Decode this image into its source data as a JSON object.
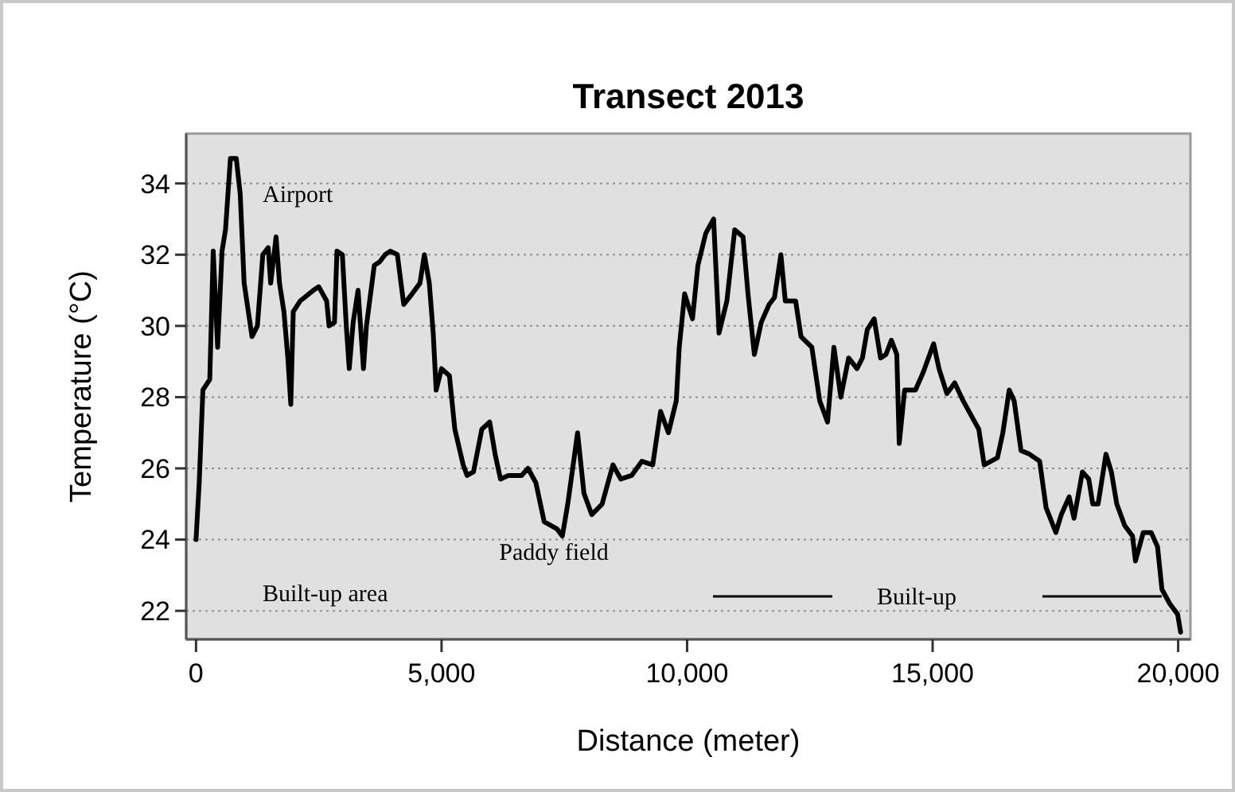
{
  "chart_data": {
    "type": "line",
    "title": "Transect 2013",
    "xlabel": "Distance (meter)",
    "ylabel": "Temperature (°C)",
    "xlim": [
      -200,
      20250
    ],
    "xticks": [
      {
        "value": 0,
        "label": "0"
      },
      {
        "value": 5000,
        "label": "5,000"
      },
      {
        "value": 10000,
        "label": "10,000"
      },
      {
        "value": 15000,
        "label": "15,000"
      },
      {
        "value": 20000,
        "label": "20,000"
      }
    ],
    "ylim": [
      21.2,
      35.4
    ],
    "yticks": [
      22,
      24,
      26,
      28,
      30,
      32,
      34
    ],
    "grid": "y",
    "marker": "none",
    "line_style": "solid",
    "annotations": [
      "Airport",
      "Built-up area",
      "Paddy field",
      "Built-up"
    ],
    "series": [
      {
        "color": "#000000",
        "x": [
          0,
          65,
          140,
          280,
          350,
          440,
          530,
          600,
          700,
          820,
          900,
          980,
          1140,
          1250,
          1360,
          1470,
          1520,
          1630,
          1700,
          1790,
          1870,
          1930,
          1980,
          2120,
          2390,
          2500,
          2660,
          2710,
          2820,
          2870,
          2980,
          3060,
          3120,
          3200,
          3300,
          3410,
          3470,
          3630,
          3740,
          3850,
          3960,
          4100,
          4230,
          4400,
          4560,
          4650,
          4750,
          4830,
          4890,
          5000,
          5160,
          5270,
          5440,
          5520,
          5650,
          5820,
          5980,
          6090,
          6200,
          6360,
          6630,
          6760,
          6920,
          7090,
          7350,
          7460,
          7570,
          7770,
          7900,
          8060,
          8270,
          8490,
          8650,
          8870,
          9080,
          9300,
          9460,
          9620,
          9780,
          9840,
          9950,
          10110,
          10220,
          10380,
          10540,
          10650,
          10810,
          10970,
          11140,
          11240,
          11370,
          11510,
          11670,
          11780,
          11910,
          12000,
          12210,
          12320,
          12540,
          12700,
          12860,
          12990,
          13130,
          13290,
          13460,
          13570,
          13670,
          13810,
          13940,
          14050,
          14160,
          14270,
          14320,
          14430,
          14650,
          14810,
          15020,
          15130,
          15290,
          15450,
          15620,
          15780,
          15940,
          16050,
          16320,
          16430,
          16560,
          16660,
          16800,
          16970,
          17180,
          17310,
          17510,
          17620,
          17780,
          17880,
          18050,
          18180,
          18260,
          18370,
          18530,
          18640,
          18750,
          18910,
          19070,
          19130,
          19290,
          19450,
          19580,
          19670,
          19830,
          19990,
          20050
        ],
        "values": [
          24.0,
          25.6,
          28.2,
          28.5,
          32.1,
          29.4,
          32.1,
          32.7,
          34.7,
          34.7,
          33.7,
          31.2,
          29.7,
          30.0,
          32.0,
          32.2,
          31.2,
          32.5,
          31.2,
          30.4,
          29.1,
          27.8,
          30.4,
          30.7,
          31.0,
          31.1,
          30.7,
          30.0,
          30.1,
          32.1,
          32.0,
          30.0,
          28.8,
          30.1,
          31.0,
          28.8,
          30.0,
          31.7,
          31.8,
          32.0,
          32.1,
          32.0,
          30.6,
          30.9,
          31.2,
          32.0,
          31.2,
          29.8,
          28.2,
          28.8,
          28.6,
          27.1,
          26.1,
          25.8,
          25.9,
          27.1,
          27.3,
          26.4,
          25.7,
          25.8,
          25.8,
          26.0,
          25.6,
          24.5,
          24.3,
          24.1,
          25.0,
          27.0,
          25.3,
          24.7,
          25.0,
          26.1,
          25.7,
          25.8,
          26.2,
          26.1,
          27.6,
          27.0,
          27.9,
          29.4,
          30.9,
          30.2,
          31.7,
          32.6,
          33.0,
          29.8,
          30.7,
          32.7,
          32.5,
          30.9,
          29.2,
          30.1,
          30.6,
          30.8,
          32.0,
          30.7,
          30.7,
          29.7,
          29.4,
          27.9,
          27.3,
          29.4,
          28.0,
          29.1,
          28.8,
          29.1,
          29.9,
          30.2,
          29.1,
          29.2,
          29.6,
          29.2,
          26.7,
          28.2,
          28.2,
          28.7,
          29.5,
          28.8,
          28.1,
          28.4,
          27.9,
          27.5,
          27.1,
          26.1,
          26.3,
          27.0,
          28.2,
          27.9,
          26.5,
          26.4,
          26.2,
          24.9,
          24.2,
          24.7,
          25.2,
          24.6,
          25.9,
          25.7,
          25.0,
          25.0,
          26.4,
          25.9,
          25.0,
          24.4,
          24.1,
          23.4,
          24.2,
          24.2,
          23.8,
          22.6,
          22.2,
          21.9,
          21.4
        ]
      }
    ]
  }
}
